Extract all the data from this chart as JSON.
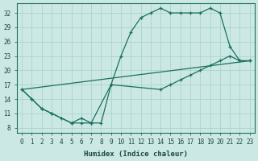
{
  "xlabel": "Humidex (Indice chaleur)",
  "bg_color": "#cce8e4",
  "grid_color": "#aad4cc",
  "line_color": "#1a7060",
  "xlim": [
    -0.5,
    23.5
  ],
  "ylim": [
    7,
    34
  ],
  "yticks": [
    8,
    11,
    14,
    17,
    20,
    23,
    26,
    29,
    32
  ],
  "xticks": [
    0,
    1,
    2,
    3,
    4,
    5,
    6,
    7,
    8,
    9,
    10,
    11,
    12,
    13,
    14,
    15,
    16,
    17,
    18,
    19,
    20,
    21,
    22,
    23
  ],
  "line1_x": [
    0,
    1,
    2,
    3,
    4,
    5,
    6,
    7,
    8,
    9,
    10,
    11,
    12,
    13,
    14,
    15,
    16,
    17,
    18,
    19,
    20,
    21,
    22,
    23
  ],
  "line1_y": [
    16,
    14,
    12,
    11,
    10,
    9,
    9,
    9,
    9,
    17,
    23,
    28,
    31,
    32,
    33,
    32,
    32,
    32,
    32,
    33,
    32,
    25,
    22,
    22
  ],
  "line2_x": [
    0,
    1,
    2,
    3,
    5,
    6,
    7,
    9,
    14,
    15,
    16,
    17,
    18,
    19,
    20,
    21,
    22,
    23
  ],
  "line2_y": [
    16,
    14,
    12,
    11,
    9,
    10,
    9,
    17,
    16,
    17,
    18,
    19,
    20,
    21,
    22,
    23,
    22,
    22
  ],
  "line3_x": [
    0,
    23
  ],
  "line3_y": [
    16,
    22
  ]
}
